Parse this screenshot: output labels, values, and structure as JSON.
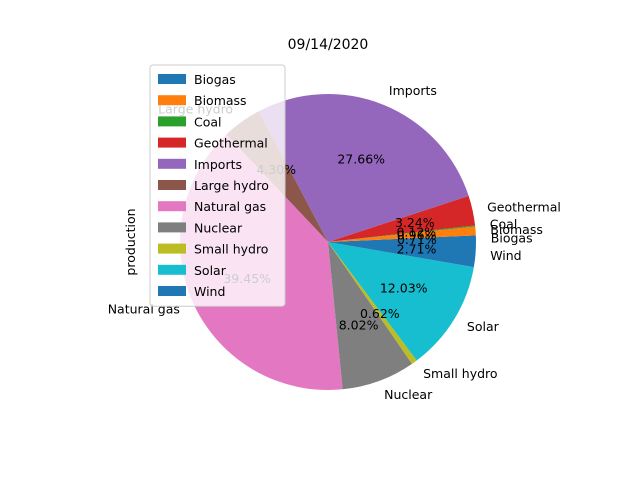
{
  "chart_data": {
    "type": "pie",
    "title": "09/14/2020",
    "ylabel": "production",
    "legend_placement": "upper-left",
    "slices": [
      {
        "label": "Biogas",
        "value": 0.71,
        "pct_label": "0.71%",
        "color": "#1f77b4"
      },
      {
        "label": "Biomass",
        "value": 0.96,
        "pct_label": "0.96%",
        "color": "#ff7f0e"
      },
      {
        "label": "Coal",
        "value": 0.12,
        "pct_label": "0.12%",
        "color": "#2ca02c"
      },
      {
        "label": "Geothermal",
        "value": 3.24,
        "pct_label": "3.24%",
        "color": "#d62728"
      },
      {
        "label": "Imports",
        "value": 27.66,
        "pct_label": "27.66%",
        "color": "#9467bd"
      },
      {
        "label": "Large hydro",
        "value": 4.3,
        "pct_label": "4.30%",
        "color": "#8c564b"
      },
      {
        "label": "Natural gas",
        "value": 39.45,
        "pct_label": "39.45%",
        "color": "#e377c2"
      },
      {
        "label": "Nuclear",
        "value": 8.02,
        "pct_label": "8.02%",
        "color": "#7f7f7f"
      },
      {
        "label": "Small hydro",
        "value": 0.62,
        "pct_label": "0.62%",
        "color": "#bcbd22"
      },
      {
        "label": "Solar",
        "value": 12.03,
        "pct_label": "12.03%",
        "color": "#17becf"
      },
      {
        "label": "Wind",
        "value": 2.71,
        "pct_label": "2.71%",
        "color": "#1f77b4"
      }
    ]
  }
}
